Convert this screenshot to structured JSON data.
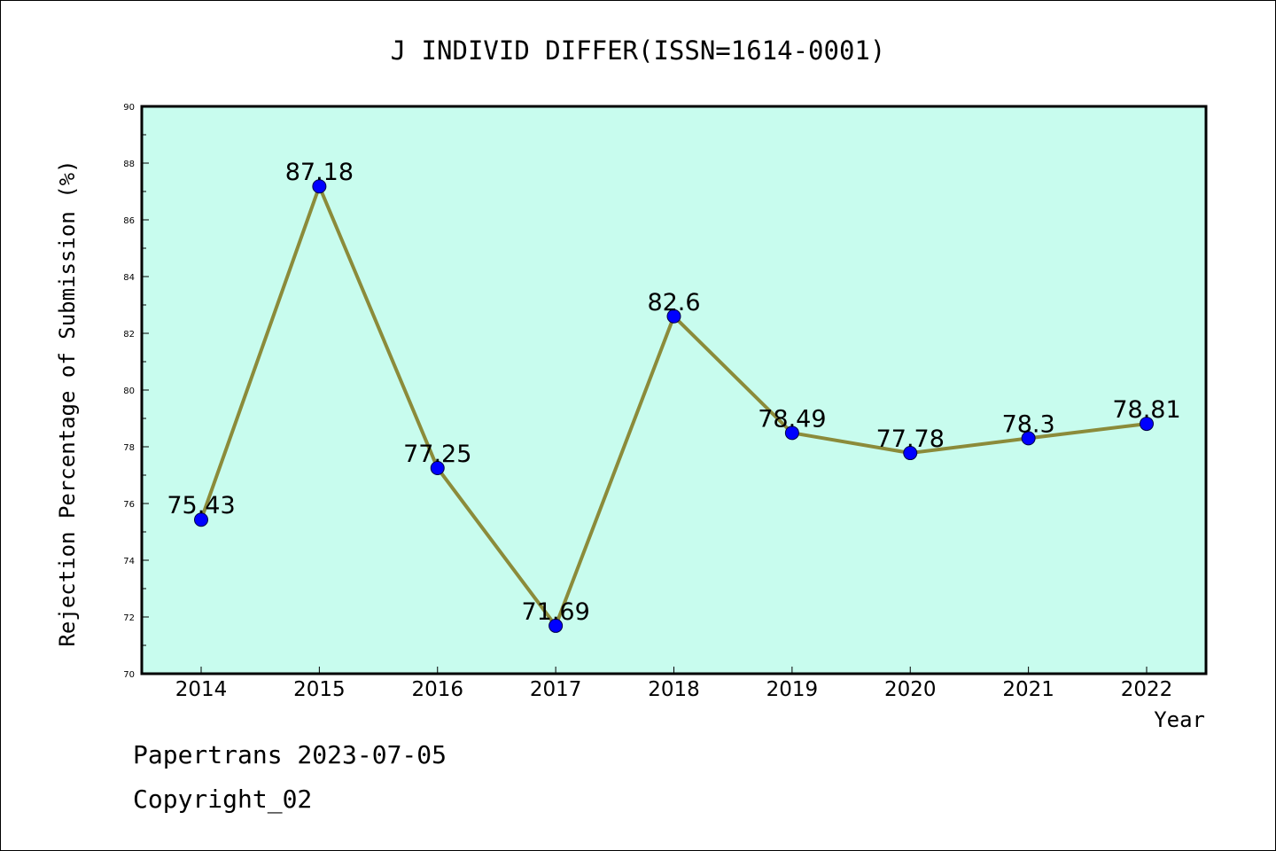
{
  "chart_data": {
    "type": "line",
    "title": "J INDIVID DIFFER(ISSN=1614-0001)",
    "xlabel": "Year",
    "ylabel": "Rejection Percentage of Submission (%)",
    "categories": [
      "2014",
      "2015",
      "2016",
      "2017",
      "2018",
      "2019",
      "2020",
      "2021",
      "2022"
    ],
    "values": [
      75.43,
      87.18,
      77.25,
      71.69,
      82.6,
      78.49,
      77.78,
      78.3,
      78.81
    ],
    "data_labels": [
      "75.43",
      "87.18",
      "77.25",
      "71.69",
      "82.6",
      "78.49",
      "77.78",
      "78.3",
      "78.81"
    ],
    "ylim": [
      70,
      90
    ],
    "yticks": [
      "70",
      "72",
      "74",
      "76",
      "78",
      "80",
      "82",
      "84",
      "86",
      "88",
      "90"
    ],
    "grid": false,
    "colors": {
      "plot_background": "#c8fcee",
      "line": "#8b8b3a",
      "marker": "#0000ff",
      "axes": "#000000"
    }
  },
  "footer": {
    "line1": "Papertrans 2023-07-05",
    "line2": "Copyright_02"
  }
}
